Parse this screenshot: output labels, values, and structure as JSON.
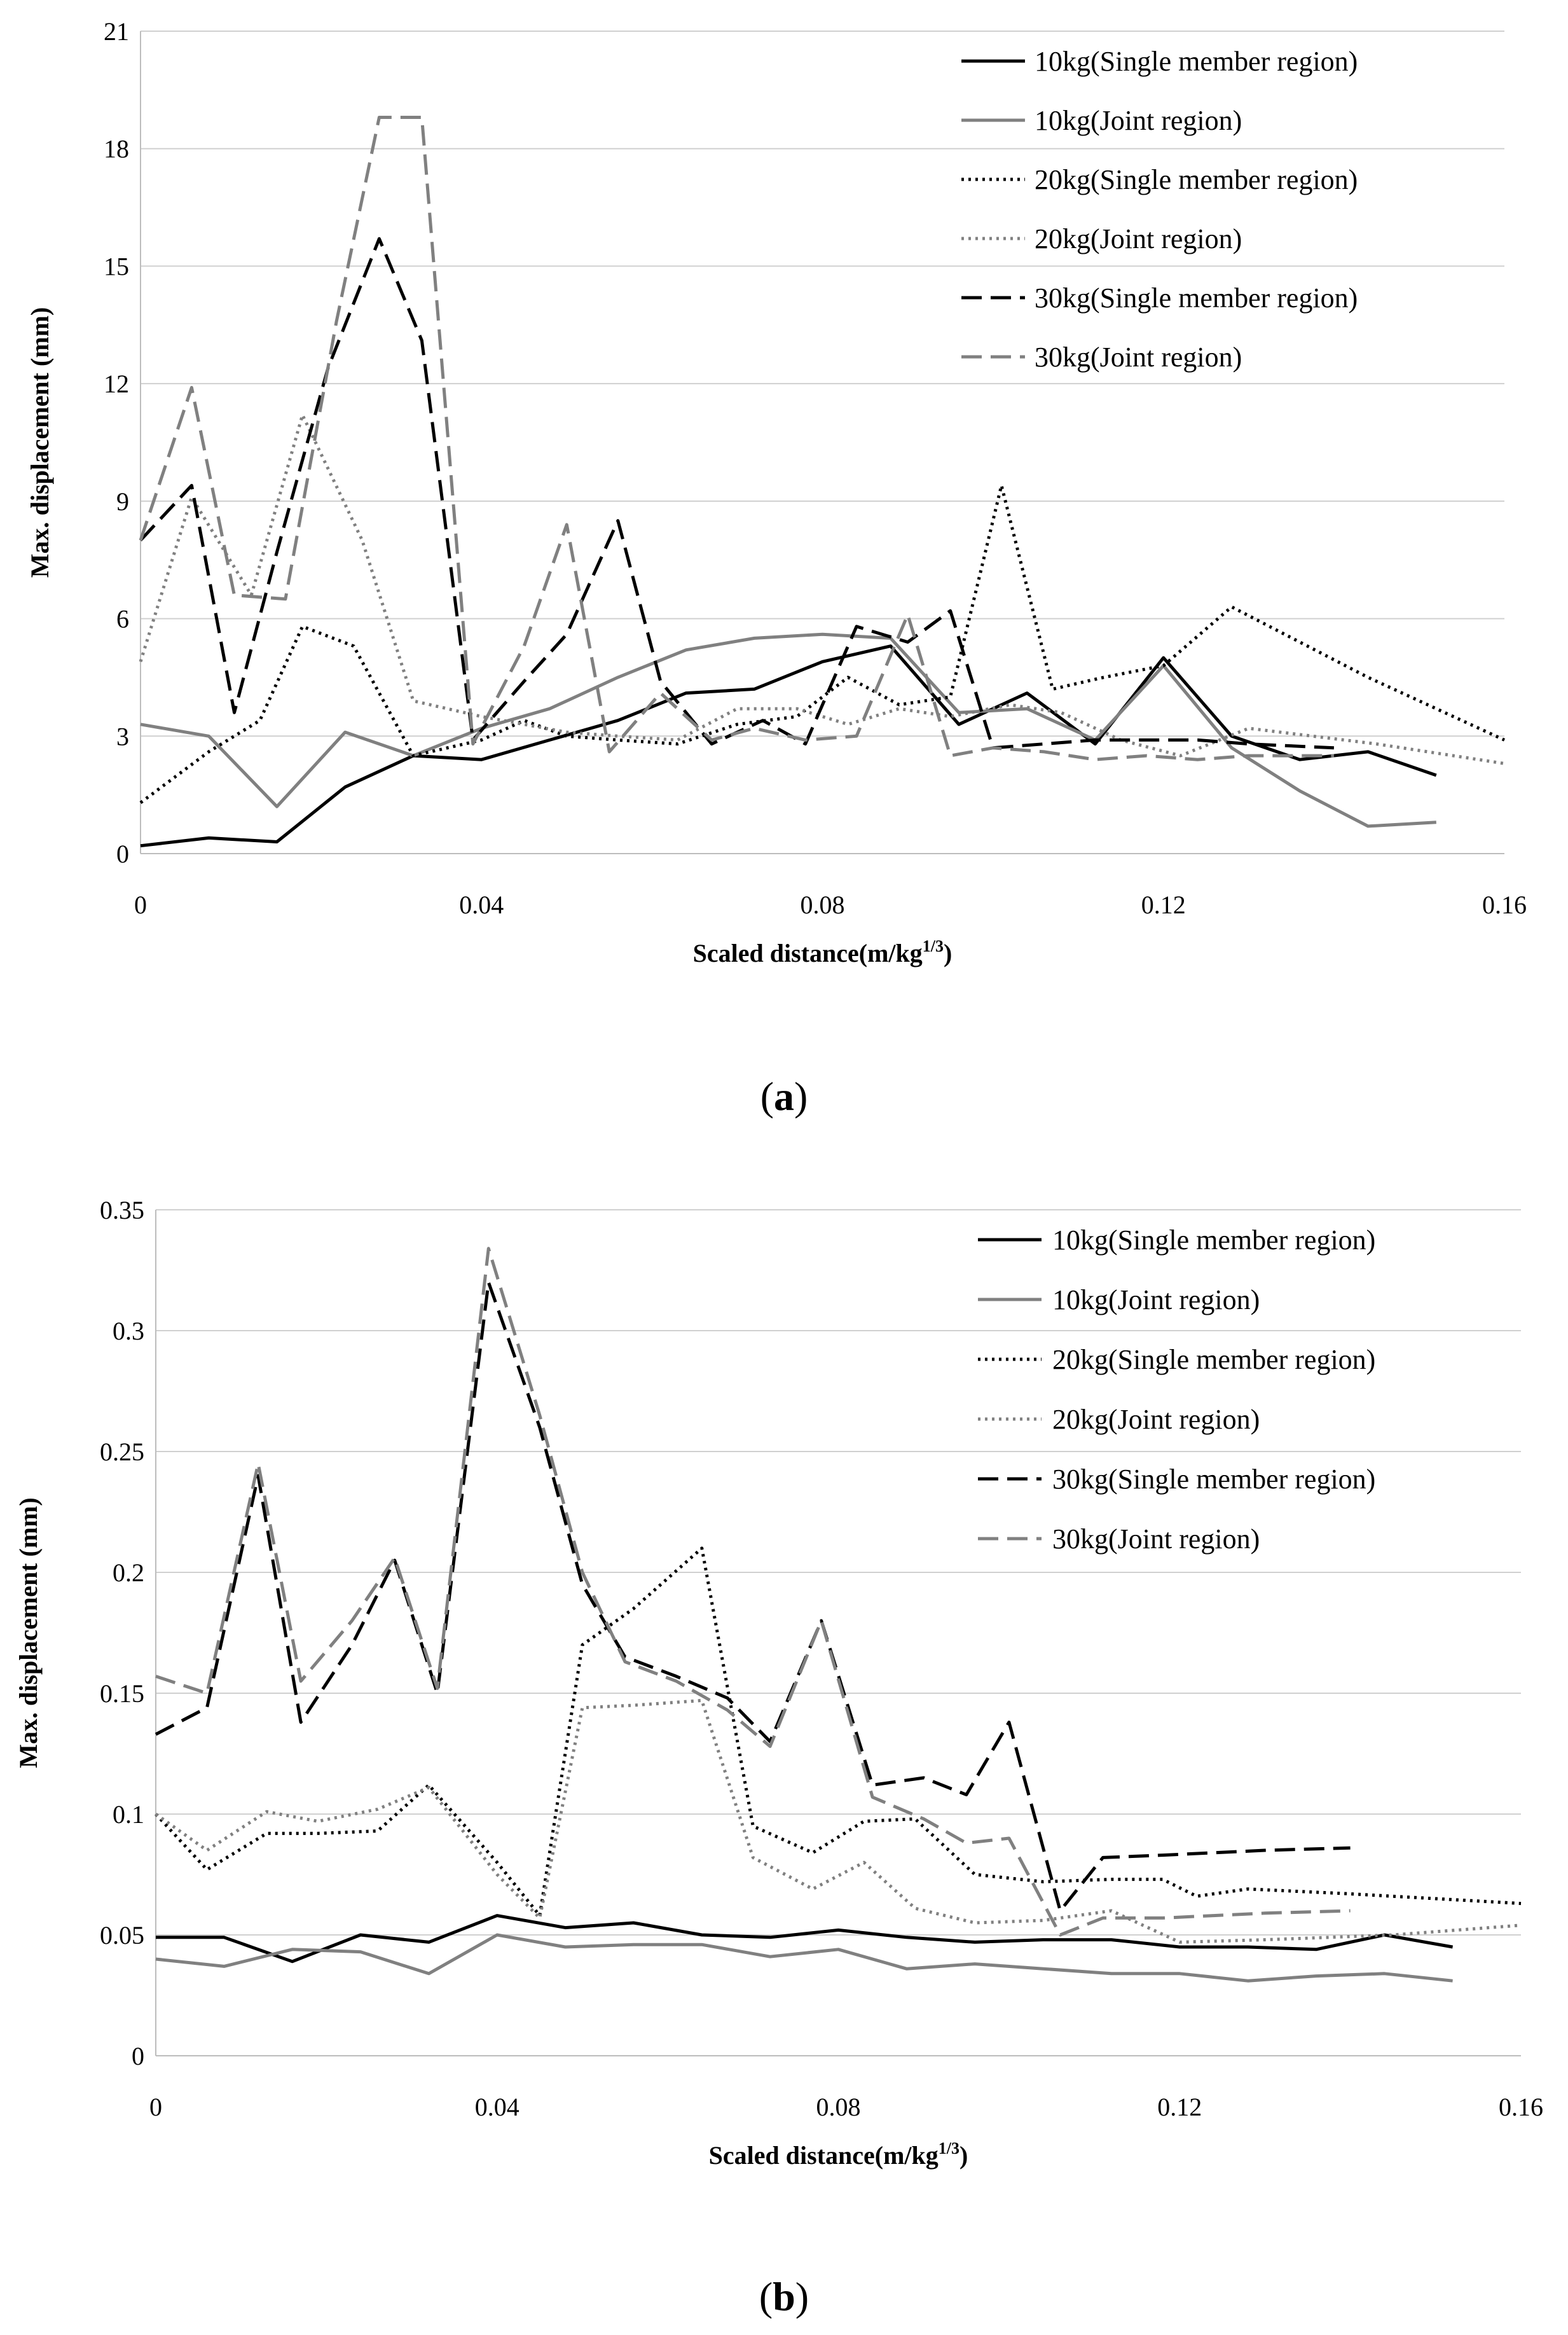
{
  "chart_data": [
    {
      "type": "line",
      "panel_label": "a",
      "xlabel": "Scaled distance(m/kg",
      "xlabel_sup": "1/3",
      "xlabel_end": ")",
      "ylabel": "Max. displacement (mm)",
      "xlim": [
        0,
        0.16
      ],
      "ylim": [
        0,
        21
      ],
      "x_ticks": [
        "0",
        "0.04",
        "0.08",
        "0.12",
        "0.16"
      ],
      "y_ticks": [
        "0",
        "3",
        "6",
        "9",
        "12",
        "15",
        "18",
        "21"
      ],
      "x_tick_values": [
        0,
        0.04,
        0.08,
        0.12,
        0.16
      ],
      "y_tick_values": [
        0,
        3,
        6,
        9,
        12,
        15,
        18,
        21
      ],
      "grid": "horizontal",
      "legend_position": "top-right",
      "series": [
        {
          "name": "10kg(Single member region)",
          "color": "#000000",
          "dash": "solid",
          "x": [
            0,
            0.008,
            0.016,
            0.024,
            0.032,
            0.04,
            0.048,
            0.056,
            0.064,
            0.072,
            0.08,
            0.088,
            0.096,
            0.104,
            0.112,
            0.12,
            0.128,
            0.136,
            0.144,
            0.152
          ],
          "y": [
            0.2,
            0.4,
            0.3,
            1.7,
            2.5,
            2.4,
            2.9,
            3.4,
            4.1,
            4.2,
            4.9,
            5.3,
            3.3,
            4.1,
            2.8,
            5.0,
            3.0,
            2.4,
            2.6,
            2.0
          ]
        },
        {
          "name": "10kg(Joint region)",
          "color": "#808080",
          "dash": "solid",
          "x": [
            0,
            0.008,
            0.016,
            0.024,
            0.032,
            0.04,
            0.048,
            0.056,
            0.064,
            0.072,
            0.08,
            0.088,
            0.096,
            0.104,
            0.112,
            0.12,
            0.128,
            0.136,
            0.144,
            0.152
          ],
          "y": [
            3.3,
            3.0,
            1.2,
            3.1,
            2.5,
            3.2,
            3.7,
            4.5,
            5.2,
            5.5,
            5.6,
            5.5,
            3.6,
            3.7,
            2.9,
            4.8,
            2.7,
            1.6,
            0.7,
            0.8
          ]
        },
        {
          "name": "20kg(Single member region)",
          "color": "#000000",
          "dash": "dot",
          "x": [
            0,
            0.008,
            0.014,
            0.019,
            0.025,
            0.032,
            0.04,
            0.045,
            0.05,
            0.056,
            0.063,
            0.07,
            0.077,
            0.083,
            0.089,
            0.095,
            0.101,
            0.107,
            0.113,
            0.12,
            0.128,
            0.144,
            0.16
          ],
          "y": [
            1.3,
            2.6,
            3.4,
            5.8,
            5.3,
            2.5,
            2.9,
            3.4,
            3.0,
            2.9,
            2.8,
            3.3,
            3.5,
            4.5,
            3.8,
            4.0,
            9.4,
            4.2,
            4.5,
            4.8,
            6.3,
            4.5,
            2.9
          ]
        },
        {
          "name": "20kg(Joint region)",
          "color": "#808080",
          "dash": "dot",
          "x": [
            0,
            0.006,
            0.013,
            0.019,
            0.026,
            0.032,
            0.04,
            0.045,
            0.05,
            0.056,
            0.063,
            0.07,
            0.077,
            0.083,
            0.089,
            0.095,
            0.102,
            0.108,
            0.115,
            0.122,
            0.13,
            0.145,
            0.16
          ],
          "y": [
            4.9,
            9.1,
            6.6,
            11.2,
            8.0,
            3.9,
            3.5,
            3.3,
            3.1,
            3.0,
            2.9,
            3.7,
            3.7,
            3.3,
            3.7,
            3.5,
            3.8,
            3.6,
            2.9,
            2.5,
            3.2,
            2.8,
            2.3
          ]
        },
        {
          "name": "30kg(Single member region)",
          "color": "#000000",
          "dash": "dash",
          "x": [
            0,
            0.006,
            0.011,
            0.016,
            0.022,
            0.028,
            0.033,
            0.039,
            0.045,
            0.05,
            0.056,
            0.061,
            0.067,
            0.073,
            0.078,
            0.084,
            0.09,
            0.095,
            0.1,
            0.106,
            0.112,
            0.118,
            0.124,
            0.13,
            0.14
          ],
          "y": [
            8.0,
            9.4,
            3.6,
            7.7,
            12.4,
            15.7,
            13.1,
            2.9,
            4.4,
            5.6,
            8.5,
            4.4,
            2.8,
            3.4,
            2.8,
            5.8,
            5.4,
            6.2,
            2.7,
            2.8,
            2.9,
            2.9,
            2.9,
            2.8,
            2.7
          ]
        },
        {
          "name": "30kg(Joint region)",
          "color": "#808080",
          "dash": "dash",
          "x": [
            0,
            0.006,
            0.011,
            0.017,
            0.023,
            0.028,
            0.033,
            0.039,
            0.045,
            0.05,
            0.055,
            0.061,
            0.067,
            0.072,
            0.078,
            0.084,
            0.09,
            0.095,
            0.1,
            0.106,
            0.112,
            0.118,
            0.124,
            0.13,
            0.14
          ],
          "y": [
            8.0,
            11.9,
            6.6,
            6.5,
            13.6,
            18.8,
            18.8,
            2.8,
            5.3,
            8.4,
            2.6,
            4.1,
            2.9,
            3.2,
            2.9,
            3.0,
            6.1,
            2.5,
            2.7,
            2.6,
            2.4,
            2.5,
            2.4,
            2.5,
            2.5
          ]
        }
      ]
    },
    {
      "type": "line",
      "panel_label": "b",
      "xlabel": "Scaled distance(m/kg",
      "xlabel_sup": "1/3",
      "xlabel_end": ")",
      "ylabel": "Max. displacement (mm)",
      "xlim": [
        0,
        0.16
      ],
      "ylim": [
        0,
        0.35
      ],
      "x_ticks": [
        "0",
        "0.04",
        "0.08",
        "0.12",
        "0.16"
      ],
      "y_ticks": [
        "0",
        "0.05",
        "0.1",
        "0.15",
        "0.2",
        "0.25",
        "0.3",
        "0.35"
      ],
      "x_tick_values": [
        0,
        0.04,
        0.08,
        0.12,
        0.16
      ],
      "y_tick_values": [
        0,
        0.05,
        0.1,
        0.15,
        0.2,
        0.25,
        0.3,
        0.35
      ],
      "grid": "horizontal",
      "legend_position": "top-right",
      "series": [
        {
          "name": "10kg(Single member region)",
          "color": "#000000",
          "dash": "solid",
          "x": [
            0,
            0.008,
            0.016,
            0.024,
            0.032,
            0.04,
            0.048,
            0.056,
            0.064,
            0.072,
            0.08,
            0.088,
            0.096,
            0.104,
            0.112,
            0.12,
            0.128,
            0.136,
            0.144,
            0.152
          ],
          "y": [
            0.049,
            0.049,
            0.039,
            0.05,
            0.047,
            0.058,
            0.053,
            0.055,
            0.05,
            0.049,
            0.052,
            0.049,
            0.047,
            0.048,
            0.048,
            0.045,
            0.045,
            0.044,
            0.05,
            0.045
          ]
        },
        {
          "name": "10kg(Joint region)",
          "color": "#808080",
          "dash": "solid",
          "x": [
            0,
            0.008,
            0.016,
            0.024,
            0.032,
            0.04,
            0.048,
            0.056,
            0.064,
            0.072,
            0.08,
            0.088,
            0.096,
            0.104,
            0.112,
            0.12,
            0.128,
            0.136,
            0.144,
            0.152
          ],
          "y": [
            0.04,
            0.037,
            0.044,
            0.043,
            0.034,
            0.05,
            0.045,
            0.046,
            0.046,
            0.041,
            0.044,
            0.036,
            0.038,
            0.036,
            0.034,
            0.034,
            0.031,
            0.033,
            0.034,
            0.031
          ]
        },
        {
          "name": "20kg(Single member region)",
          "color": "#000000",
          "dash": "dot",
          "x": [
            0,
            0.006,
            0.013,
            0.019,
            0.026,
            0.032,
            0.04,
            0.045,
            0.05,
            0.056,
            0.064,
            0.07,
            0.077,
            0.083,
            0.089,
            0.096,
            0.104,
            0.112,
            0.118,
            0.122,
            0.128,
            0.14,
            0.16
          ],
          "y": [
            0.1,
            0.077,
            0.092,
            0.092,
            0.093,
            0.112,
            0.08,
            0.058,
            0.17,
            0.185,
            0.21,
            0.095,
            0.084,
            0.097,
            0.098,
            0.075,
            0.072,
            0.073,
            0.073,
            0.066,
            0.069,
            0.067,
            0.063
          ]
        },
        {
          "name": "20kg(Joint region)",
          "color": "#808080",
          "dash": "dot",
          "x": [
            0,
            0.006,
            0.013,
            0.019,
            0.026,
            0.032,
            0.04,
            0.045,
            0.05,
            0.056,
            0.064,
            0.07,
            0.077,
            0.083,
            0.089,
            0.096,
            0.104,
            0.112,
            0.12,
            0.13,
            0.145,
            0.16
          ],
          "y": [
            0.1,
            0.085,
            0.101,
            0.097,
            0.102,
            0.111,
            0.075,
            0.057,
            0.144,
            0.145,
            0.147,
            0.082,
            0.069,
            0.08,
            0.061,
            0.055,
            0.056,
            0.06,
            0.047,
            0.048,
            0.05,
            0.054
          ]
        },
        {
          "name": "30kg(Single member region)",
          "color": "#000000",
          "dash": "dash",
          "x": [
            0,
            0.006,
            0.012,
            0.017,
            0.023,
            0.028,
            0.033,
            0.039,
            0.045,
            0.05,
            0.055,
            0.061,
            0.067,
            0.072,
            0.078,
            0.084,
            0.09,
            0.095,
            0.1,
            0.106,
            0.111,
            0.118,
            0.124,
            0.13,
            0.14
          ],
          "y": [
            0.133,
            0.144,
            0.24,
            0.138,
            0.17,
            0.205,
            0.15,
            0.32,
            0.26,
            0.195,
            0.165,
            0.157,
            0.148,
            0.13,
            0.18,
            0.112,
            0.115,
            0.108,
            0.138,
            0.06,
            0.082,
            0.083,
            0.084,
            0.085,
            0.086
          ]
        },
        {
          "name": "30kg(Joint region)",
          "color": "#808080",
          "dash": "dash",
          "x": [
            0,
            0.006,
            0.012,
            0.017,
            0.023,
            0.028,
            0.033,
            0.039,
            0.045,
            0.05,
            0.055,
            0.061,
            0.067,
            0.072,
            0.078,
            0.084,
            0.09,
            0.095,
            0.1,
            0.106,
            0.111,
            0.118,
            0.124,
            0.13,
            0.14
          ],
          "y": [
            0.157,
            0.15,
            0.245,
            0.155,
            0.18,
            0.206,
            0.152,
            0.334,
            0.265,
            0.2,
            0.163,
            0.155,
            0.143,
            0.128,
            0.18,
            0.107,
            0.098,
            0.088,
            0.09,
            0.05,
            0.057,
            0.057,
            0.058,
            0.059,
            0.06
          ]
        }
      ]
    }
  ]
}
